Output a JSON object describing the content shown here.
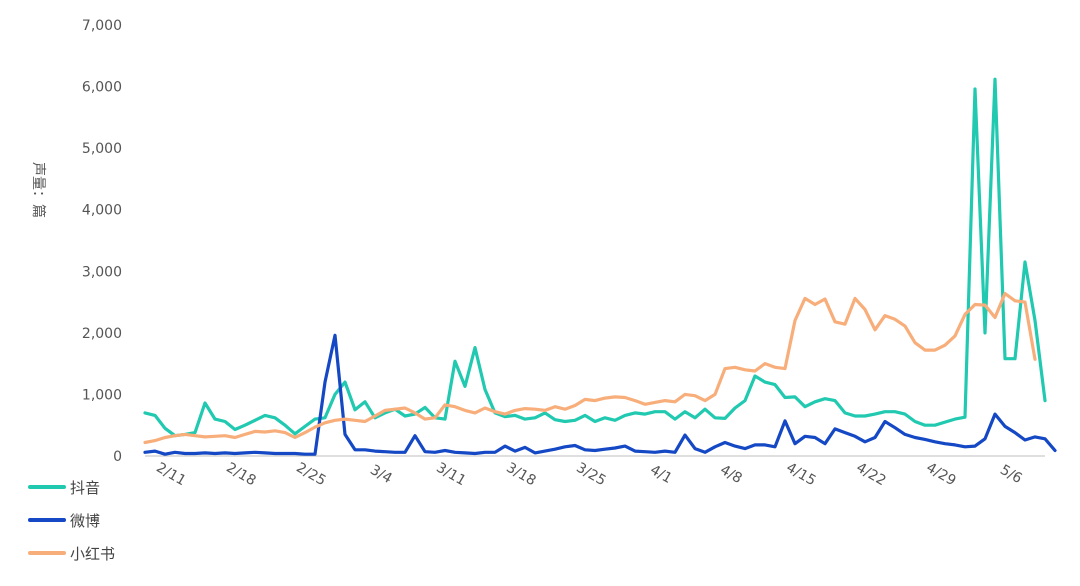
{
  "chart_data": {
    "type": "line",
    "title": "",
    "xlabel": "",
    "ylabel": "声量：篇",
    "ylim": [
      0,
      7000
    ],
    "yticks": [
      "0",
      "1,000",
      "2,000",
      "3,000",
      "4,000",
      "5,000",
      "6,000",
      "7,000"
    ],
    "grid": false,
    "legend_position": "bottom-left",
    "x_start": "2/9",
    "x_tick_labels": [
      "2/11",
      "2/18",
      "2/25",
      "3/4",
      "3/11",
      "3/18",
      "3/25",
      "4/1",
      "4/8",
      "4/15",
      "4/22",
      "4/29",
      "5/6"
    ],
    "x_tick_index": [
      2,
      9,
      16,
      23,
      30,
      37,
      44,
      51,
      58,
      65,
      72,
      79,
      86
    ],
    "series": [
      {
        "name": "抖音",
        "color": "#21c9b0",
        "values": [
          700,
          660,
          450,
          330,
          350,
          380,
          860,
          600,
          560,
          430,
          500,
          580,
          660,
          620,
          500,
          360,
          480,
          600,
          620,
          1000,
          1200,
          750,
          880,
          620,
          700,
          760,
          650,
          680,
          790,
          620,
          600,
          1540,
          1130,
          1760,
          1080,
          700,
          640,
          660,
          600,
          620,
          700,
          590,
          560,
          580,
          660,
          560,
          620,
          580,
          660,
          700,
          680,
          720,
          720,
          600,
          720,
          620,
          760,
          620,
          610,
          780,
          900,
          1300,
          1200,
          1160,
          950,
          960,
          800,
          880,
          930,
          900,
          700,
          650,
          650,
          680,
          720,
          720,
          680,
          560,
          500,
          500,
          550,
          600,
          630,
          5960,
          2000,
          6120,
          1580,
          1580,
          3150,
          2200,
          900
        ]
      },
      {
        "name": "微博",
        "color": "#1448c4",
        "values": [
          60,
          80,
          30,
          60,
          40,
          40,
          50,
          40,
          50,
          40,
          50,
          60,
          50,
          40,
          40,
          40,
          30,
          30,
          1200,
          1960,
          350,
          100,
          100,
          80,
          70,
          60,
          60,
          330,
          70,
          60,
          90,
          60,
          50,
          40,
          60,
          60,
          160,
          80,
          140,
          50,
          80,
          110,
          150,
          170,
          100,
          90,
          110,
          130,
          160,
          80,
          70,
          60,
          80,
          60,
          340,
          120,
          60,
          150,
          220,
          160,
          120,
          180,
          180,
          150,
          570,
          200,
          320,
          300,
          200,
          440,
          380,
          320,
          230,
          300,
          560,
          460,
          350,
          300,
          270,
          230,
          200,
          180,
          150,
          160,
          280,
          680,
          480,
          380,
          260,
          310,
          280,
          90
        ]
      },
      {
        "name": "小红书",
        "color": "#f8ae7a",
        "values": [
          220,
          250,
          300,
          330,
          350,
          330,
          310,
          320,
          330,
          300,
          350,
          400,
          390,
          410,
          380,
          300,
          380,
          470,
          540,
          580,
          600,
          580,
          560,
          650,
          740,
          760,
          780,
          700,
          600,
          620,
          830,
          800,
          740,
          700,
          780,
          720,
          680,
          740,
          770,
          760,
          740,
          800,
          760,
          820,
          920,
          900,
          940,
          960,
          950,
          900,
          840,
          870,
          900,
          880,
          1000,
          980,
          900,
          1000,
          1420,
          1440,
          1400,
          1380,
          1500,
          1440,
          1420,
          2200,
          2560,
          2460,
          2550,
          2180,
          2140,
          2560,
          2380,
          2050,
          2280,
          2220,
          2110,
          1840,
          1720,
          1720,
          1800,
          1950,
          2300,
          2460,
          2450,
          2250,
          2640,
          2520,
          2500,
          1570
        ]
      }
    ]
  }
}
